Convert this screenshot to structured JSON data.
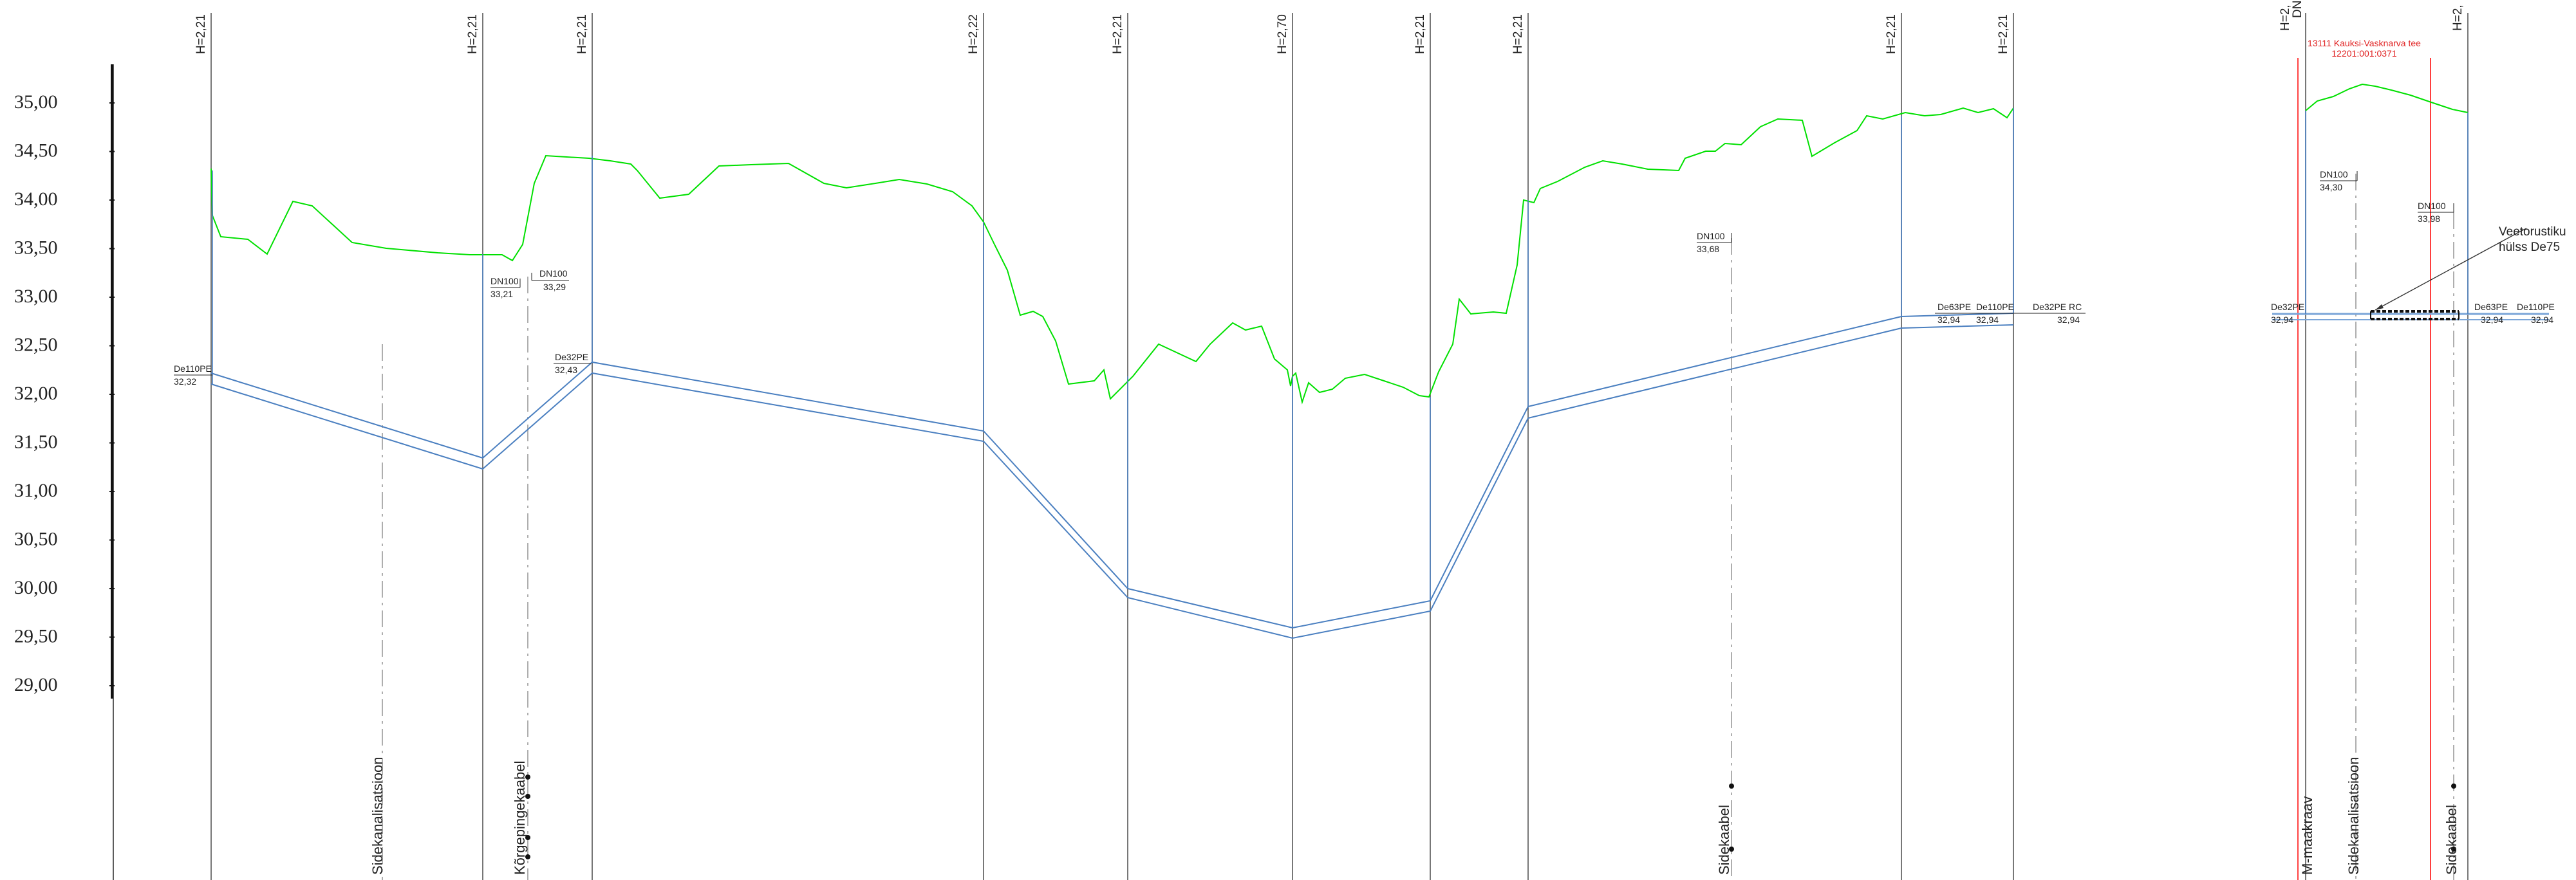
{
  "elevation_scale": {
    "labels": [
      "35,00",
      "34,50",
      "34,00",
      "33,50",
      "33,00",
      "32,50",
      "32,00",
      "31,50",
      "31,00",
      "30,50",
      "30,00",
      "29,50",
      "29,00"
    ]
  },
  "sections": {
    "h_labels": [
      "H=2,21",
      "H=2,21",
      "H=2,21",
      "H=2,22",
      "H=2,21",
      "H=2,70",
      "H=2,21",
      "H=2,21",
      "H=2,21",
      "H=2,21",
      "H=2,",
      "H=2,",
      "DN"
    ]
  },
  "pipe_labels": {
    "de110pe_start": "De110PE",
    "de110pe_start_level": "32,32",
    "dn100_a": "DN100",
    "dn100_a_level": "33,21",
    "dn100_b": "DN100",
    "dn100_b_level": "33,29",
    "de32pe_mid": "De32PE",
    "de32pe_mid_level": "32,43",
    "dn100_c": "DN100",
    "dn100_c_level": "33,68",
    "de63pe_r": "De63PE",
    "de63pe_r_level": "32,94",
    "de110pe_r": "De110PE",
    "de110pe_r_level": "32,94",
    "de32pe_rc": "De32PE RC",
    "de32pe_rc_level": "32,94",
    "dn100_d": "DN100",
    "dn100_d_level": "34,30",
    "dn100_e": "DN100",
    "dn100_e_level": "33,98",
    "de32pe_far": "De32PE",
    "de32pe_far_level": "32,94",
    "de63pe_far": "De63PE",
    "de63pe_far_level": "32,94",
    "de110pe_far": "De110PE",
    "de110pe_far_level": "32,94"
  },
  "callouts": {
    "sleeve_line1": "Veetorustiku",
    "sleeve_line2": "hülss De75",
    "road_line1": "13111 Kauksi-Vasknarva tee",
    "road_line2": "12201:001:0371"
  },
  "crossings": {
    "sidekanalisatsioon_1": "Sidekanalisatsioon",
    "korgepingekaabel": "Kõrgepingekaabel",
    "sidekaabel_1": "Sidekaabel",
    "maakraav": "M-maakraav",
    "sidekanalisatsioon_2": "Sidekanalisatsioon",
    "sidekaabel_2": "Sidekaabel"
  },
  "colors": {
    "ground": "#00e000",
    "pipe": "#4a7fc0",
    "section_line": "#555555",
    "road_boundary": "#ff2a2a",
    "crossing": "#9a9a9a",
    "text": "#222222",
    "road_text": "#e02020"
  }
}
